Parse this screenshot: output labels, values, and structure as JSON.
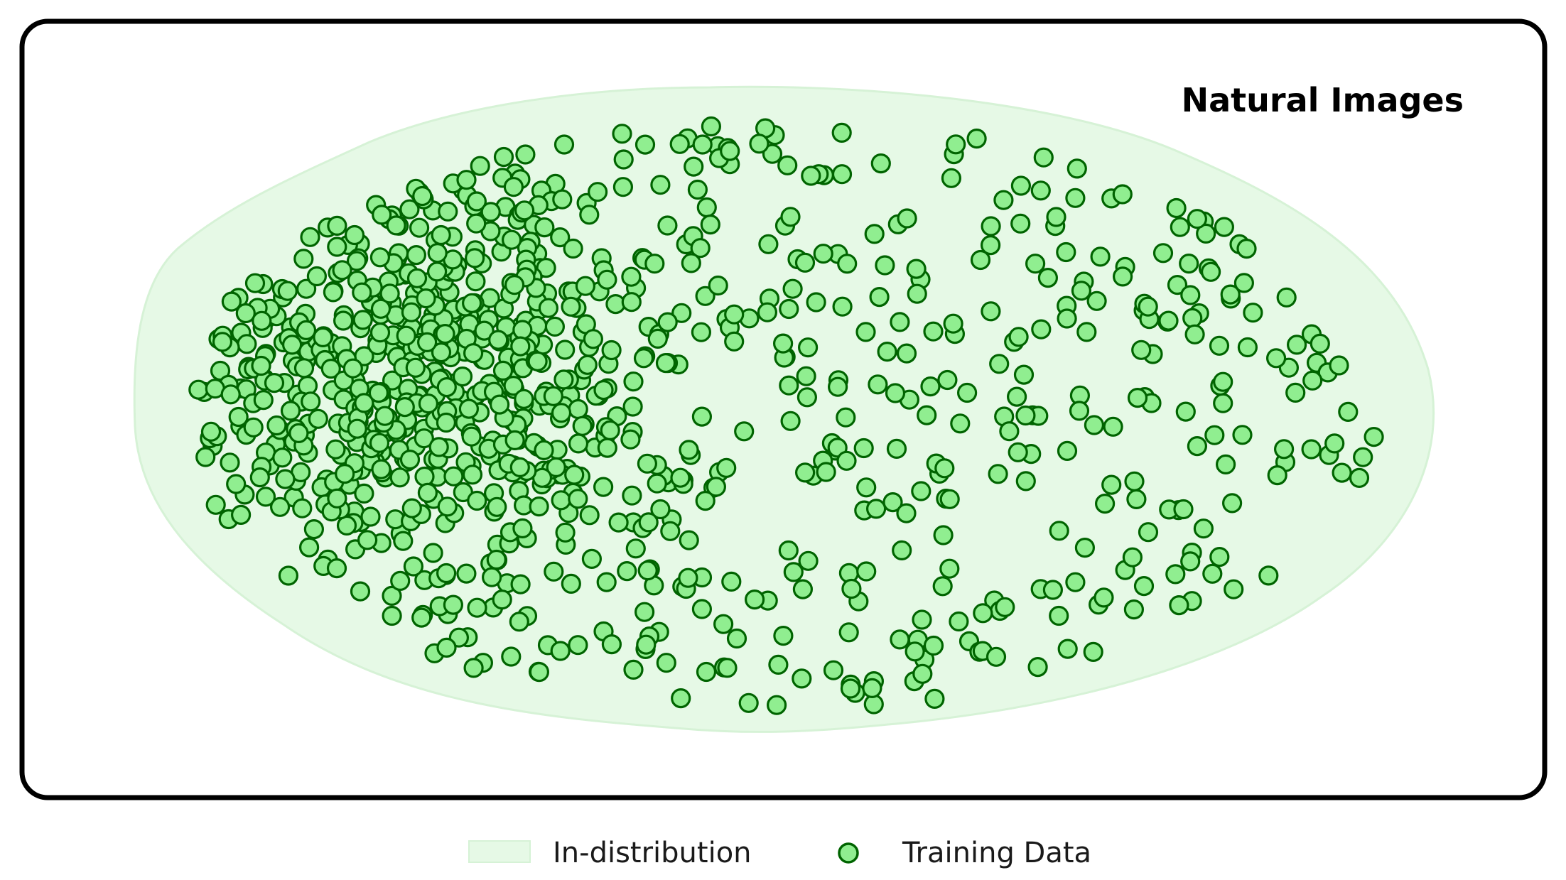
{
  "panel": {
    "title": "Natural Images"
  },
  "legend": {
    "region_label": "In-distribution",
    "points_label": "Training Data"
  },
  "colors": {
    "region_fill": "#e6f9e6",
    "region_edge": "#d6f2d6",
    "point_fill": "#90ee90",
    "point_edge": "#006400",
    "frame": "#000000"
  },
  "icons": {
    "region": "light-green-rectangle",
    "points": "green-circle-marker"
  },
  "chart_data": {
    "type": "scatter",
    "title": "Natural Images",
    "point_count": 1000,
    "distribution": "dense cluster on the left, sparser scatter across an elliptical in-distribution region",
    "series": [
      {
        "name": "Training Data",
        "marker": "circle"
      }
    ],
    "region": {
      "name": "In-distribution",
      "shape": "ellipse"
    },
    "axes": "none",
    "grid": false,
    "legend_position": "bottom-center"
  }
}
